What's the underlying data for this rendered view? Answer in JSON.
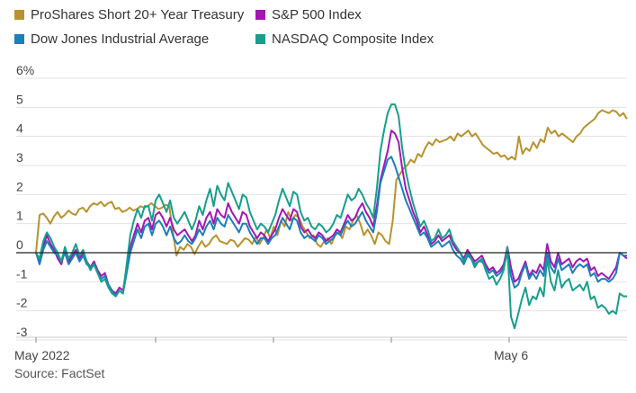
{
  "chart_data": {
    "type": "line",
    "y_axis_top_label": "6%",
    "yticks": [
      5,
      4,
      3,
      2,
      1,
      0,
      -1,
      -2,
      -3
    ],
    "ylim": [
      -3.6,
      6
    ],
    "x_tick_labels": [
      "May 2022",
      "May 6"
    ],
    "zero_line": true,
    "legend_position": "top-left",
    "source": "Source: FactSet",
    "series": [
      {
        "name": "ProShares Short 20+ Year Treasury",
        "color": "#b9922e",
        "values": [
          0,
          1.3,
          1.35,
          1.2,
          1.0,
          1.25,
          1.4,
          1.2,
          1.3,
          1.45,
          1.35,
          1.3,
          1.5,
          1.55,
          1.4,
          1.6,
          1.7,
          1.65,
          1.75,
          1.6,
          1.7,
          1.75,
          1.5,
          1.55,
          1.4,
          1.45,
          1.55,
          1.45,
          1.5,
          1.6,
          1.55,
          1.6,
          1.7,
          1.6,
          1.5,
          1.55,
          1.65,
          1.6,
          0.7,
          -0.1,
          0.2,
          0.1,
          0.3,
          0.2,
          -0.05,
          0.2,
          0.4,
          0.2,
          0.3,
          0.5,
          0.6,
          0.4,
          0.35,
          0.3,
          0.45,
          0.4,
          0.2,
          0.35,
          0.5,
          0.45,
          0.3,
          0.55,
          0.3,
          0.5,
          0.8,
          0.5,
          0.9,
          0.6,
          1.1,
          0.9,
          1.4,
          1.1,
          1.3,
          1.2,
          0.9,
          0.7,
          0.5,
          0.6,
          0.3,
          0.2,
          0.4,
          0.5,
          0.3,
          0.6,
          0.7,
          0.5,
          0.9,
          0.8,
          1.1,
          1.3,
          1.0,
          0.6,
          0.8,
          0.6,
          0.3,
          0.7,
          0.6,
          0.4,
          0.3,
          1.1,
          2.5,
          2.7,
          2.9,
          3.0,
          3.2,
          3.1,
          3.4,
          3.3,
          3.6,
          3.8,
          3.7,
          3.9,
          3.8,
          3.85,
          3.9,
          4.0,
          3.85,
          4.1,
          4.0,
          4.1,
          4.2,
          4.0,
          4.1,
          3.9,
          3.7,
          3.6,
          3.5,
          3.4,
          3.45,
          3.3,
          3.35,
          3.2,
          3.3,
          3.2,
          4.0,
          3.4,
          3.6,
          3.5,
          3.8,
          3.6,
          3.9,
          3.8,
          4.3,
          4.1,
          4.2,
          4.0,
          4.1,
          4.0,
          3.9,
          3.8,
          4.0,
          4.1,
          4.3,
          4.4,
          4.5,
          4.6,
          4.8,
          4.9,
          4.85,
          4.8,
          4.9,
          4.85,
          4.7,
          4.8,
          4.6
        ]
      },
      {
        "name": "S&P 500 Index",
        "color": "#a316b5",
        "values": [
          0,
          -0.3,
          0.2,
          0.6,
          0.3,
          0.1,
          -0.2,
          -0.4,
          0.1,
          -0.3,
          -0.1,
          0.1,
          -0.2,
          0.0,
          -0.3,
          -0.5,
          -0.3,
          -0.6,
          -0.8,
          -0.7,
          -1.1,
          -1.3,
          -1.4,
          -1.2,
          -1.3,
          -0.6,
          0.2,
          0.6,
          1.0,
          0.7,
          1.1,
          1.2,
          0.8,
          1.3,
          1.4,
          1.2,
          0.9,
          1.2,
          0.8,
          0.6,
          0.7,
          0.8,
          0.6,
          0.4,
          0.6,
          1.1,
          0.8,
          1.2,
          1.4,
          1.0,
          1.5,
          1.3,
          1.2,
          1.7,
          1.4,
          1.2,
          1.0,
          1.4,
          1.3,
          0.9,
          0.7,
          0.5,
          0.7,
          0.6,
          0.4,
          0.6,
          0.8,
          1.2,
          1.5,
          1.3,
          1.1,
          1.5,
          1.4,
          0.9,
          0.7,
          0.8,
          0.6,
          0.5,
          0.7,
          0.6,
          0.4,
          0.5,
          0.6,
          0.8,
          0.7,
          1.0,
          1.3,
          1.1,
          1.2,
          1.5,
          1.7,
          1.4,
          1.2,
          0.9,
          1.6,
          2.5,
          3.0,
          3.5,
          4.2,
          4.1,
          3.8,
          2.9,
          2.2,
          1.8,
          1.4,
          1.1,
          0.7,
          0.9,
          0.6,
          0.3,
          0.4,
          0.6,
          0.4,
          0.5,
          0.6,
          0.3,
          0.1,
          0.0,
          -0.2,
          0.1,
          -0.1,
          -0.3,
          -0.2,
          -0.1,
          -0.4,
          -0.6,
          -0.5,
          -0.7,
          -0.6,
          -0.4,
          0.2,
          -0.5,
          -1.0,
          -0.9,
          -0.6,
          -0.3,
          -0.8,
          -0.6,
          -0.7,
          -0.4,
          -0.6,
          0.3,
          -0.3,
          -0.5,
          0.0,
          -0.4,
          -0.3,
          -0.2,
          -0.5,
          -0.3,
          -0.2,
          -0.3,
          -0.2,
          -0.6,
          -0.5,
          -0.8,
          -0.7,
          -0.8,
          -0.9,
          -0.7,
          -0.5,
          0.0,
          -0.1,
          -0.2
        ]
      },
      {
        "name": "Dow Jones Industrial Average",
        "color": "#1a7fba",
        "values": [
          0,
          -0.4,
          0.1,
          0.4,
          0.2,
          0.0,
          -0.1,
          -0.3,
          0.0,
          -0.4,
          -0.2,
          0.0,
          -0.3,
          -0.1,
          -0.4,
          -0.5,
          -0.4,
          -0.7,
          -0.9,
          -0.8,
          -1.1,
          -1.3,
          -1.5,
          -1.3,
          -1.4,
          -0.7,
          0.0,
          0.4,
          0.8,
          0.5,
          0.9,
          1.0,
          0.6,
          1.0,
          1.1,
          0.9,
          0.6,
          0.9,
          0.5,
          0.3,
          0.4,
          0.6,
          0.4,
          0.3,
          0.5,
          0.8,
          0.6,
          0.9,
          1.1,
          0.8,
          1.2,
          1.0,
          0.9,
          1.3,
          1.1,
          0.9,
          0.7,
          1.0,
          1.0,
          0.7,
          0.5,
          0.3,
          0.5,
          0.5,
          0.3,
          0.5,
          0.6,
          0.9,
          1.2,
          1.0,
          0.8,
          1.2,
          1.1,
          0.7,
          0.5,
          0.6,
          0.5,
          0.4,
          0.6,
          0.5,
          0.3,
          0.4,
          0.5,
          0.7,
          0.6,
          0.9,
          1.1,
          0.9,
          1.0,
          1.2,
          1.4,
          1.1,
          0.9,
          0.7,
          1.4,
          2.4,
          2.8,
          3.2,
          3.3,
          3.0,
          2.6,
          2.2,
          1.8,
          1.5,
          1.2,
          0.9,
          0.6,
          0.7,
          0.5,
          0.2,
          0.3,
          0.4,
          0.2,
          0.3,
          0.4,
          0.1,
          -0.1,
          -0.2,
          -0.4,
          -0.1,
          -0.2,
          -0.4,
          -0.3,
          -0.3,
          -0.5,
          -0.7,
          -0.6,
          -0.8,
          -0.7,
          -0.5,
          0.0,
          -0.8,
          -1.2,
          -1.1,
          -0.7,
          -0.4,
          -0.9,
          -0.7,
          -0.9,
          -0.6,
          -0.8,
          0.0,
          -0.5,
          -0.7,
          -0.2,
          -0.6,
          -0.5,
          -0.4,
          -0.7,
          -0.5,
          -0.4,
          -0.5,
          -0.4,
          -0.8,
          -0.7,
          -1.0,
          -0.9,
          -0.9,
          -1.0,
          -0.9,
          -0.7,
          0.0,
          -0.1,
          -0.1
        ]
      },
      {
        "name": "NASDAQ Composite Index",
        "color": "#169f8c",
        "values": [
          0,
          -0.2,
          0.4,
          0.7,
          0.5,
          0.2,
          0.0,
          -0.3,
          0.2,
          -0.2,
          0.0,
          0.3,
          -0.1,
          0.1,
          -0.3,
          -0.6,
          -0.4,
          -0.7,
          -1.0,
          -0.9,
          -1.2,
          -1.4,
          -1.5,
          -1.3,
          -1.4,
          -0.4,
          0.6,
          1.1,
          1.5,
          1.2,
          1.6,
          1.6,
          1.1,
          1.8,
          2.0,
          1.7,
          1.4,
          1.8,
          1.2,
          1.0,
          1.2,
          1.4,
          1.1,
          0.8,
          1.1,
          1.6,
          1.3,
          1.8,
          2.2,
          1.6,
          2.3,
          2.0,
          1.8,
          2.4,
          2.1,
          1.8,
          1.5,
          2.0,
          1.9,
          1.4,
          1.1,
          0.8,
          1.0,
          0.9,
          0.7,
          1.0,
          1.3,
          1.8,
          2.2,
          1.9,
          1.6,
          2.1,
          2.0,
          1.4,
          1.1,
          1.2,
          0.9,
          0.8,
          1.0,
          0.9,
          0.7,
          0.8,
          1.0,
          1.3,
          1.2,
          1.6,
          2.0,
          1.8,
          1.9,
          2.2,
          2.0,
          1.7,
          1.5,
          1.2,
          2.2,
          3.5,
          4.2,
          4.8,
          5.1,
          5.1,
          4.7,
          3.6,
          2.8,
          2.2,
          1.7,
          1.3,
          0.9,
          1.1,
          0.8,
          0.4,
          0.5,
          0.8,
          0.5,
          0.6,
          0.8,
          0.4,
          0.2,
          0.0,
          -0.3,
          0.0,
          -0.2,
          -0.5,
          -0.3,
          -0.2,
          -0.6,
          -0.9,
          -0.8,
          -1.1,
          -0.9,
          -0.6,
          0.2,
          -2.2,
          -2.6,
          -2.1,
          -1.6,
          -1.2,
          -1.8,
          -1.5,
          -1.6,
          -1.2,
          -1.5,
          -0.2,
          -1.0,
          -1.3,
          -0.6,
          -1.2,
          -1.0,
          -0.9,
          -1.3,
          -1.2,
          -1.1,
          -1.3,
          -1.0,
          -1.6,
          -1.5,
          -1.9,
          -1.8,
          -1.9,
          -2.1,
          -2.0,
          -2.1,
          -1.4,
          -1.5,
          -1.5
        ]
      }
    ]
  }
}
